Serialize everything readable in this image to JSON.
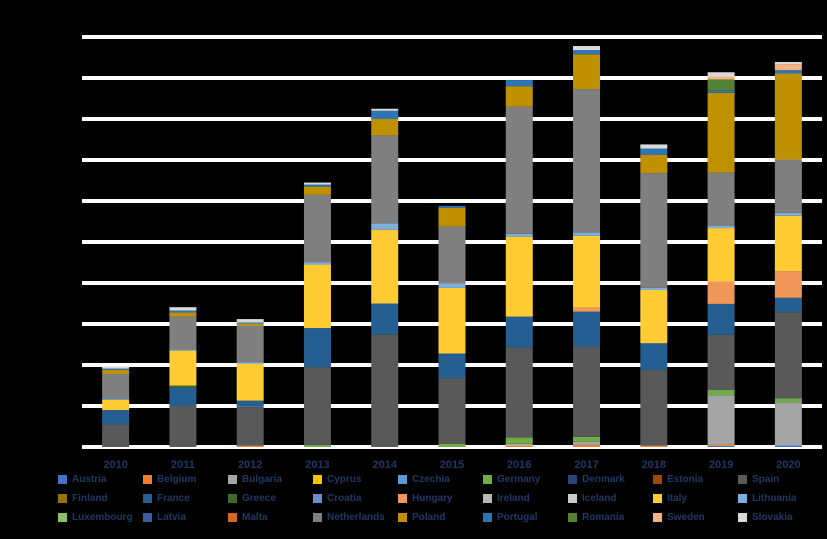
{
  "chart_data": {
    "type": "bar",
    "stacked": true,
    "title": "",
    "xlabel": "",
    "ylabel": "",
    "ylim": [
      0,
      100
    ],
    "grid": true,
    "legend_position": "bottom",
    "categories": [
      "2010",
      "2011",
      "2012",
      "2013",
      "2014",
      "2015",
      "2016",
      "2017",
      "2018",
      "2019",
      "2020"
    ],
    "series": [
      {
        "name": "Austria",
        "color": "#4472c4",
        "values": [
          0.0,
          0.0,
          0.0,
          0.0,
          0.0,
          0.0,
          0.0,
          0.0,
          0.0,
          0.3,
          0.4
        ]
      },
      {
        "name": "Belgium",
        "color": "#ed7d31",
        "values": [
          0.0,
          0.0,
          0.3,
          0.0,
          0.0,
          0.0,
          0.3,
          0.5,
          0.3,
          0.3,
          0.0
        ]
      },
      {
        "name": "Bulgaria",
        "color": "#a5a5a5",
        "values": [
          0.0,
          0.0,
          0.0,
          0.0,
          0.0,
          0.0,
          0.5,
          0.8,
          0.0,
          12.0,
          10.5
        ]
      },
      {
        "name": "Cyprus",
        "color": "#ffc000",
        "values": [
          0.0,
          0.0,
          0.0,
          0.0,
          0.0,
          0.0,
          0.0,
          0.0,
          0.0,
          0.0,
          0.0
        ]
      },
      {
        "name": "Czechia",
        "color": "#5b9bd5",
        "values": [
          0.0,
          0.0,
          0.0,
          0.0,
          0.0,
          0.0,
          0.0,
          0.0,
          0.0,
          0.0,
          0.0
        ]
      },
      {
        "name": "Germany",
        "color": "#70ad47",
        "values": [
          0.0,
          0.0,
          0.0,
          0.5,
          0.0,
          0.8,
          1.5,
          1.2,
          0.0,
          1.3,
          1.0
        ]
      },
      {
        "name": "Denmark",
        "color": "#264478",
        "values": [
          0.0,
          0.0,
          0.0,
          0.0,
          0.0,
          0.0,
          0.0,
          0.0,
          0.0,
          0.0,
          0.0
        ]
      },
      {
        "name": "Estonia",
        "color": "#9e480e",
        "values": [
          0.0,
          0.0,
          0.0,
          0.0,
          0.0,
          0.0,
          0.0,
          0.0,
          0.0,
          0.0,
          0.0
        ]
      },
      {
        "name": "Spain",
        "color": "#595959",
        "values": [
          5.5,
          10.0,
          9.5,
          19.0,
          27.5,
          16.0,
          22.0,
          22.0,
          18.5,
          13.5,
          21.0
        ]
      },
      {
        "name": "Finland",
        "color": "#997300",
        "values": [
          0.0,
          0.0,
          0.0,
          0.0,
          0.0,
          0.0,
          0.0,
          0.0,
          0.0,
          0.0,
          0.0
        ]
      },
      {
        "name": "France",
        "color": "#255e91",
        "values": [
          3.5,
          4.5,
          1.5,
          9.5,
          7.5,
          6.0,
          7.5,
          8.5,
          6.5,
          7.5,
          3.5
        ]
      },
      {
        "name": "Greece",
        "color": "#43682b",
        "values": [
          0.0,
          0.5,
          0.0,
          0.0,
          0.0,
          0.0,
          0.0,
          0.0,
          0.0,
          0.0,
          0.0
        ]
      },
      {
        "name": "Croatia",
        "color": "#698ed0",
        "values": [
          0.0,
          0.0,
          0.0,
          0.0,
          0.0,
          0.0,
          0.0,
          0.0,
          0.0,
          0.0,
          0.0
        ]
      },
      {
        "name": "Hungary",
        "color": "#f1975a",
        "values": [
          0.0,
          0.0,
          0.0,
          0.0,
          0.0,
          0.0,
          0.0,
          1.0,
          0.0,
          5.5,
          6.5
        ]
      },
      {
        "name": "Ireland",
        "color": "#b7b7b7",
        "values": [
          0.0,
          0.0,
          0.0,
          0.0,
          0.0,
          0.0,
          0.0,
          0.0,
          0.0,
          0.0,
          0.0
        ]
      },
      {
        "name": "Iceland",
        "color": "#c9c9c9",
        "values": [
          0.0,
          0.0,
          0.0,
          0.0,
          0.0,
          0.0,
          0.0,
          0.0,
          0.0,
          0.0,
          0.0
        ]
      },
      {
        "name": "Italy",
        "color": "#ffcd33",
        "values": [
          2.5,
          8.5,
          9.0,
          15.5,
          18.0,
          16.0,
          19.5,
          17.5,
          13.0,
          13.0,
          13.5
        ]
      },
      {
        "name": "Lithuania",
        "color": "#7cafdd",
        "values": [
          0.3,
          0.3,
          0.3,
          0.5,
          1.5,
          1.0,
          0.7,
          0.8,
          0.5,
          0.5,
          0.7
        ]
      },
      {
        "name": "Luxembourg",
        "color": "#8cc168",
        "values": [
          0.0,
          0.0,
          0.0,
          0.0,
          0.0,
          0.0,
          0.0,
          0.0,
          0.0,
          0.0,
          0.0
        ]
      },
      {
        "name": "Latvia",
        "color": "#3a5e9f",
        "values": [
          0.0,
          0.0,
          0.0,
          0.0,
          0.0,
          0.0,
          0.0,
          0.0,
          0.0,
          0.0,
          0.0
        ]
      },
      {
        "name": "Malta",
        "color": "#d2691e",
        "values": [
          0.0,
          0.0,
          0.0,
          0.0,
          0.0,
          0.0,
          0.0,
          0.0,
          0.0,
          0.0,
          0.0
        ]
      },
      {
        "name": "Netherlands",
        "color": "#7f7f7f",
        "values": [
          6.0,
          8.0,
          9.0,
          16.5,
          21.5,
          14.0,
          31.0,
          35.0,
          28.0,
          13.0,
          13.0
        ]
      },
      {
        "name": "Poland",
        "color": "#bf9000",
        "values": [
          1.0,
          1.0,
          0.5,
          2.0,
          4.0,
          4.5,
          5.0,
          8.5,
          4.5,
          19.5,
          21.0
        ]
      },
      {
        "name": "Portugal",
        "color": "#2e75b6",
        "values": [
          0.3,
          0.5,
          0.3,
          0.5,
          2.0,
          0.5,
          1.5,
          1.0,
          1.5,
          0.5,
          0.8
        ]
      },
      {
        "name": "Romania",
        "color": "#548235",
        "values": [
          0.0,
          0.0,
          0.0,
          0.0,
          0.0,
          0.0,
          0.0,
          0.0,
          0.0,
          2.8,
          0.0
        ]
      },
      {
        "name": "Sweden",
        "color": "#f4b183",
        "values": [
          0.0,
          0.0,
          0.0,
          0.0,
          0.0,
          0.0,
          0.0,
          0.0,
          0.0,
          0.7,
          1.5
        ]
      },
      {
        "name": "Slovakia",
        "color": "#d9d9d9",
        "values": [
          0.5,
          0.8,
          0.8,
          0.5,
          0.5,
          0.0,
          0.0,
          1.0,
          1.0,
          1.0,
          0.5
        ]
      }
    ]
  }
}
